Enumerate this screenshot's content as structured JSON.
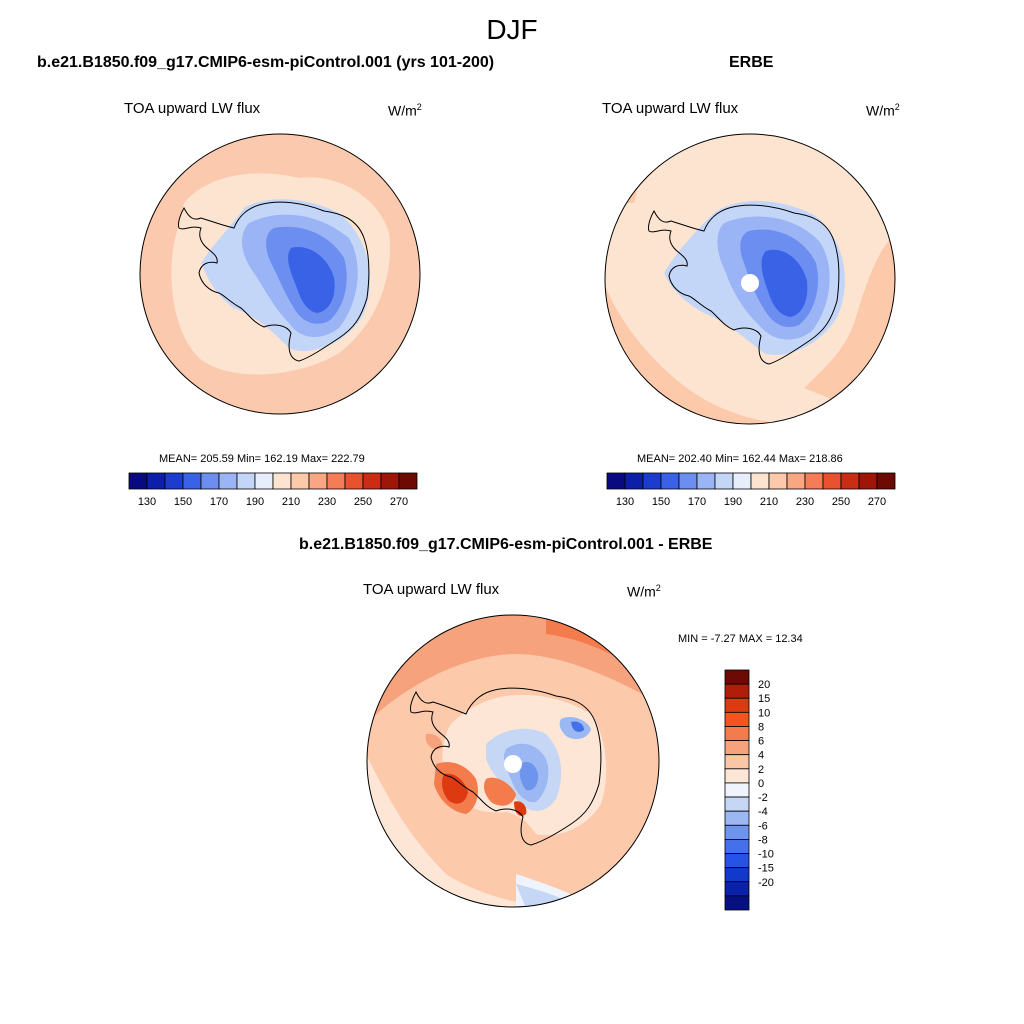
{
  "main_title": "DJF",
  "left_panel": {
    "title": "b.e21.B1850.f09_g17.CMIP6-esm-piControl.001 (yrs 101-200)",
    "variable": "TOA upward LW flux",
    "units_base": "W/m",
    "units_exp": "2",
    "stats": "MEAN= 205.59  Min= 162.19  Max= 222.79"
  },
  "right_panel": {
    "title": "ERBE",
    "variable": "TOA upward LW flux",
    "units_base": "W/m",
    "units_exp": "2",
    "stats": "MEAN= 202.40  Min= 162.44  Max= 218.86"
  },
  "diff_panel": {
    "title": "b.e21.B1850.f09_g17.CMIP6-esm-piControl.001 - ERBE",
    "variable": "TOA upward LW flux",
    "units_base": "W/m",
    "units_exp": "2",
    "stats": "MIN =  -7.27 MAX =  12.34"
  },
  "colorbar_abs": {
    "colors": [
      "#0a0a80",
      "#0d1fa8",
      "#1c3dcc",
      "#3a62e6",
      "#6b8ef0",
      "#9ab4f5",
      "#c4d6f8",
      "#e6eefc",
      "#fde4d0",
      "#fcc9ab",
      "#f9a682",
      "#f47c56",
      "#e8522e",
      "#c92d14",
      "#9e1608",
      "#6e0a04"
    ],
    "tick_labels": [
      "130",
      "150",
      "170",
      "190",
      "210",
      "230",
      "250",
      "270"
    ]
  },
  "colorbar_diff": {
    "colors": [
      "#6e0a04",
      "#b01e0a",
      "#de3a12",
      "#f2561e",
      "#f47c4c",
      "#f6a27c",
      "#f9c6a8",
      "#fde6d6",
      "#eef3fc",
      "#c6d7f6",
      "#9cb8f2",
      "#6d95ee",
      "#4470ea",
      "#2652e6",
      "#1238cc",
      "#0a22a6",
      "#061080"
    ],
    "tick_labels": [
      "20",
      "15",
      "10",
      "8",
      "6",
      "4",
      "2",
      "0",
      "-2",
      "-4",
      "-6",
      "-8",
      "-10",
      "-15",
      "-20"
    ]
  }
}
